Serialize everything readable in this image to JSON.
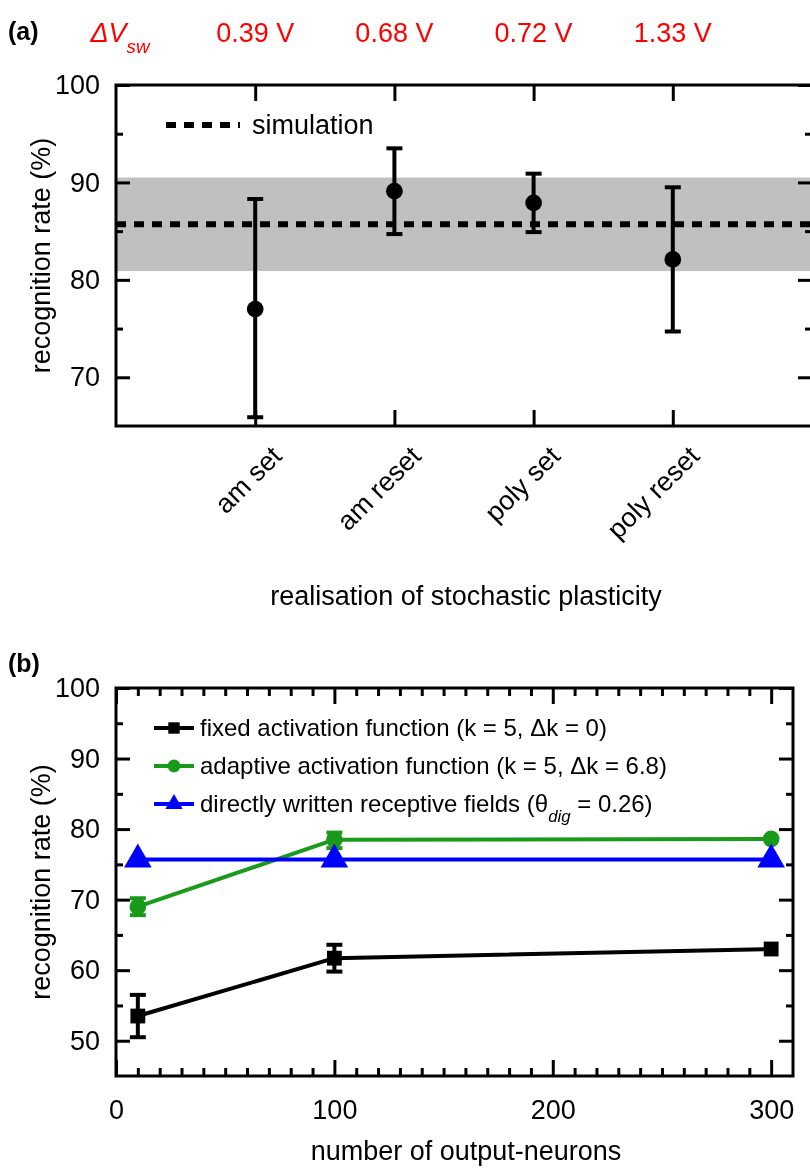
{
  "chart_data": [
    {
      "type": "scatter",
      "title": "(a)",
      "xlabel": "realisation of stochastic plasticity",
      "ylabel": "recognition rate (%)",
      "categories": [
        "am set",
        "am reset",
        "poly set",
        "poly reset"
      ],
      "series": [
        {
          "color": "#000000",
          "values": [
            77.0,
            89.1,
            87.9,
            82.1
          ],
          "errors": [
            [
              65.9,
              88.3
            ],
            [
              84.7,
              93.5
            ],
            [
              84.9,
              90.9
            ],
            [
              74.7,
              89.5
            ]
          ]
        }
      ],
      "marker": "circle",
      "ylim": [
        65,
        100
      ],
      "yticks": [
        70,
        {
          "value": 75,
          "label": null
        },
        80,
        {
          "value": 85,
          "label": null
        },
        90,
        {
          "value": 95,
          "label": null
        },
        100
      ],
      "ref_lines": [
        {
          "axis": "y",
          "value": 85.7,
          "label": "simulation",
          "color": "#000000",
          "line_style": "dashed"
        }
      ],
      "bands": [
        {
          "axis": "y",
          "from": 80.9,
          "to": 90.5,
          "color": "#c0c0c0"
        }
      ],
      "legend": "top left",
      "annotations": [
        "ΔV$_{sw}$",
        "0.39 V",
        "0.68 V",
        "0.72 V",
        "1.33 V"
      ]
    },
    {
      "type": "line",
      "title": "(b)",
      "xlabel": "number of output-neurons",
      "ylabel": "recognition rate (%)",
      "x": [
        10,
        100,
        300
      ],
      "series": [
        {
          "name": "fixed activation function (k = 5, Δk = 0)",
          "color": "#000000",
          "marker": "square",
          "values": [
            53.5,
            61.7,
            63.0
          ],
          "errors": [
            [
              50.5,
              56.5
            ],
            [
              59.8,
              63.6
            ],
            null
          ]
        },
        {
          "name": "adaptive activation function (k = 5, Δk = 6.8)",
          "color": "#1a9a1a",
          "marker": "circle",
          "values": [
            69.0,
            78.5,
            78.6
          ],
          "errors": [
            [
              67.8,
              70.2
            ],
            [
              77.3,
              79.5
            ],
            null
          ]
        },
        {
          "name": "directly written receptive fields (θ$_{dig}$ = 0.26)",
          "color": "#0000ff",
          "marker": "triangle",
          "values": [
            75.7,
            75.7,
            75.7
          ]
        }
      ],
      "xlim": [
        0,
        310
      ],
      "xticks": [
        0,
        {
          "value": 10,
          "label": null
        },
        {
          "value": 20,
          "label": null
        },
        {
          "value": 30,
          "label": null
        },
        {
          "value": 40,
          "label": null
        },
        {
          "value": 50,
          "label": null
        },
        {
          "value": 60,
          "label": null
        },
        {
          "value": 70,
          "label": null
        },
        {
          "value": 80,
          "label": null
        },
        {
          "value": 90,
          "label": null
        },
        100,
        {
          "value": 110,
          "label": null
        },
        {
          "value": 120,
          "label": null
        },
        {
          "value": 130,
          "label": null
        },
        {
          "value": 140,
          "label": null
        },
        {
          "value": 150,
          "label": null
        },
        {
          "value": 160,
          "label": null
        },
        {
          "value": 170,
          "label": null
        },
        {
          "value": 180,
          "label": null
        },
        {
          "value": 190,
          "label": null
        },
        200,
        {
          "value": 210,
          "label": null
        },
        {
          "value": 220,
          "label": null
        },
        {
          "value": 230,
          "label": null
        },
        {
          "value": 240,
          "label": null
        },
        {
          "value": 250,
          "label": null
        },
        {
          "value": 260,
          "label": null
        },
        {
          "value": 270,
          "label": null
        },
        {
          "value": 280,
          "label": null
        },
        {
          "value": 290,
          "label": null
        },
        300
      ],
      "ylim": [
        45,
        100
      ],
      "yticks": [
        50,
        {
          "value": 55,
          "label": null
        },
        60,
        {
          "value": 65,
          "label": null
        },
        70,
        {
          "value": 75,
          "label": null
        },
        80,
        {
          "value": 85,
          "label": null
        },
        90,
        {
          "value": 95,
          "label": null
        },
        100
      ],
      "legend": "top left"
    }
  ]
}
